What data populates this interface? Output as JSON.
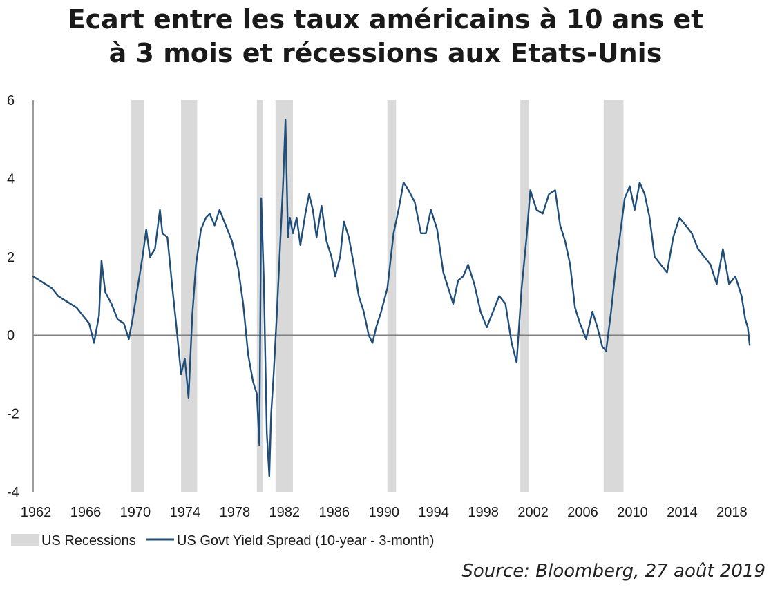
{
  "title_line1": "Ecart entre les taux américains à 10 ans et",
  "title_line2": "à 3 mois et récessions aux Etats-Unis",
  "source": "Source: Bloomberg, 27 août 2019",
  "colors": {
    "line": "#1f4e7a",
    "recession": "#d9d9d9",
    "axis": "#7f7f7f",
    "text": "#1a1a1a"
  },
  "chart_data": {
    "type": "line",
    "title": "Ecart entre les taux américains à 10 ans et à 3 mois et récessions aux Etats-Unis",
    "xlabel": "",
    "ylabel": "",
    "xlim": [
      1962,
      2019.7
    ],
    "ylim": [
      -4,
      6
    ],
    "x_ticks": [
      "1962",
      "1966",
      "1970",
      "1974",
      "1978",
      "1982",
      "1986",
      "1990",
      "1994",
      "1998",
      "2002",
      "2006",
      "2010",
      "2014",
      "2018"
    ],
    "y_ticks": [
      "6",
      "4",
      "2",
      "0",
      "-2",
      "-4"
    ],
    "grid": false,
    "legend_position": "bottom-left",
    "legend": [
      "US Recessions",
      "US Govt Yield Spread (10-year - 3-month)"
    ],
    "recessions": [
      {
        "start": 1969.9,
        "end": 1970.9
      },
      {
        "start": 1973.9,
        "end": 1975.2
      },
      {
        "start": 1980.0,
        "end": 1980.5
      },
      {
        "start": 1981.5,
        "end": 1982.9
      },
      {
        "start": 1990.5,
        "end": 1991.2
      },
      {
        "start": 2001.2,
        "end": 2001.9
      },
      {
        "start": 2007.9,
        "end": 2009.5
      }
    ],
    "series": [
      {
        "name": "US Govt Yield Spread (10-year - 3-month)",
        "x": [
          1962.0,
          1962.5,
          1963.0,
          1963.5,
          1964.0,
          1964.5,
          1965.0,
          1965.5,
          1966.0,
          1966.5,
          1966.9,
          1967.3,
          1967.5,
          1967.8,
          1968.3,
          1968.8,
          1969.3,
          1969.7,
          1970.0,
          1970.4,
          1970.8,
          1971.1,
          1971.4,
          1971.8,
          1972.2,
          1972.4,
          1972.8,
          1973.2,
          1973.5,
          1973.9,
          1974.2,
          1974.5,
          1974.8,
          1975.1,
          1975.5,
          1975.9,
          1976.2,
          1976.6,
          1977.0,
          1977.5,
          1978.0,
          1978.5,
          1978.9,
          1979.3,
          1979.7,
          1980.0,
          1980.2,
          1980.35,
          1980.55,
          1980.8,
          1981.0,
          1981.15,
          1981.35,
          1981.6,
          1981.9,
          1982.1,
          1982.3,
          1982.5,
          1982.65,
          1982.9,
          1983.2,
          1983.5,
          1983.9,
          1984.2,
          1984.5,
          1984.8,
          1985.2,
          1985.6,
          1986.0,
          1986.3,
          1986.7,
          1987.0,
          1987.4,
          1987.8,
          1988.2,
          1988.6,
          1989.0,
          1989.3,
          1989.6,
          1990.0,
          1990.5,
          1991.0,
          1991.4,
          1991.8,
          1992.2,
          1992.7,
          1993.2,
          1993.6,
          1994.0,
          1994.5,
          1995.0,
          1995.4,
          1995.8,
          1996.2,
          1996.6,
          1997.0,
          1997.5,
          1998.0,
          1998.5,
          1999.0,
          1999.5,
          2000.0,
          2000.5,
          2000.9,
          2001.3,
          2001.7,
          2002.0,
          2002.5,
          2003.0,
          2003.5,
          2004.0,
          2004.4,
          2004.8,
          2005.2,
          2005.6,
          2006.0,
          2006.5,
          2007.0,
          2007.4,
          2007.8,
          2008.1,
          2008.5,
          2008.9,
          2009.2,
          2009.6,
          2010.0,
          2010.4,
          2010.8,
          2011.2,
          2011.6,
          2012.0,
          2012.5,
          2013.0,
          2013.5,
          2014.0,
          2014.5,
          2015.0,
          2015.5,
          2016.0,
          2016.5,
          2017.0,
          2017.5,
          2018.0,
          2018.5,
          2019.0,
          2019.3,
          2019.5,
          2019.65
        ],
        "values": [
          1.5,
          1.4,
          1.3,
          1.2,
          1.0,
          0.9,
          0.8,
          0.7,
          0.5,
          0.3,
          -0.2,
          0.5,
          1.9,
          1.1,
          0.8,
          0.4,
          0.3,
          -0.1,
          0.4,
          1.2,
          2.0,
          2.7,
          2.0,
          2.2,
          3.2,
          2.6,
          2.5,
          1.2,
          0.3,
          -1.0,
          -0.6,
          -1.6,
          0.5,
          1.8,
          2.7,
          3.0,
          3.1,
          2.8,
          3.2,
          2.8,
          2.4,
          1.7,
          0.8,
          -0.5,
          -1.2,
          -1.5,
          -2.8,
          3.5,
          1.5,
          -2.5,
          -3.6,
          -2.0,
          -1.0,
          0.5,
          2.5,
          3.8,
          5.5,
          2.5,
          3.0,
          2.6,
          3.0,
          2.3,
          3.1,
          3.6,
          3.2,
          2.5,
          3.3,
          2.4,
          2.0,
          1.5,
          2.0,
          2.9,
          2.5,
          1.8,
          1.0,
          0.6,
          0.0,
          -0.2,
          0.2,
          0.6,
          1.2,
          2.6,
          3.2,
          3.9,
          3.7,
          3.4,
          2.6,
          2.6,
          3.2,
          2.7,
          1.6,
          1.2,
          0.8,
          1.4,
          1.5,
          1.8,
          1.3,
          0.6,
          0.2,
          0.6,
          1.0,
          0.8,
          -0.2,
          -0.7,
          1.2,
          2.5,
          3.7,
          3.2,
          3.1,
          3.6,
          3.7,
          2.8,
          2.4,
          1.8,
          0.7,
          0.3,
          -0.1,
          0.6,
          0.2,
          -0.3,
          -0.4,
          0.6,
          1.8,
          2.5,
          3.5,
          3.8,
          3.2,
          3.9,
          3.6,
          3.0,
          2.0,
          1.8,
          1.6,
          2.5,
          3.0,
          2.8,
          2.6,
          2.2,
          2.0,
          1.8,
          1.3,
          2.2,
          1.3,
          1.5,
          1.0,
          0.4,
          0.2,
          -0.25
        ]
      }
    ]
  }
}
